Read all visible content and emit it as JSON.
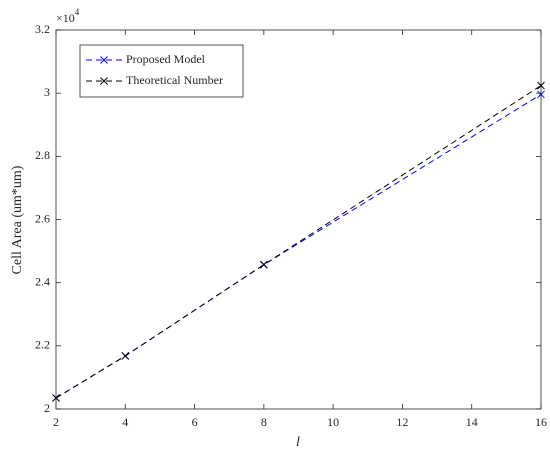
{
  "chart_data": {
    "type": "line",
    "x_label": "l",
    "y_label": "Cell Area (um*um)",
    "y_multiplier": {
      "base": "×10",
      "exponent": "4"
    },
    "x": [
      2,
      4,
      8,
      16
    ],
    "series": [
      {
        "name": "Proposed Model",
        "color": "#0000ff",
        "values": [
          2.035,
          2.168,
          2.457,
          2.996
        ]
      },
      {
        "name": "Theoretical Number",
        "color": "#000000",
        "values": [
          2.035,
          2.168,
          2.457,
          3.024
        ]
      }
    ],
    "xlim": [
      2,
      16
    ],
    "xticks": [
      2,
      4,
      6,
      8,
      10,
      12,
      14,
      16
    ],
    "ylim": [
      2,
      3.2
    ],
    "yticks": [
      2,
      2.2,
      2.4,
      2.6,
      2.8,
      3,
      3.2
    ],
    "grid": false,
    "legend": "upper left"
  }
}
